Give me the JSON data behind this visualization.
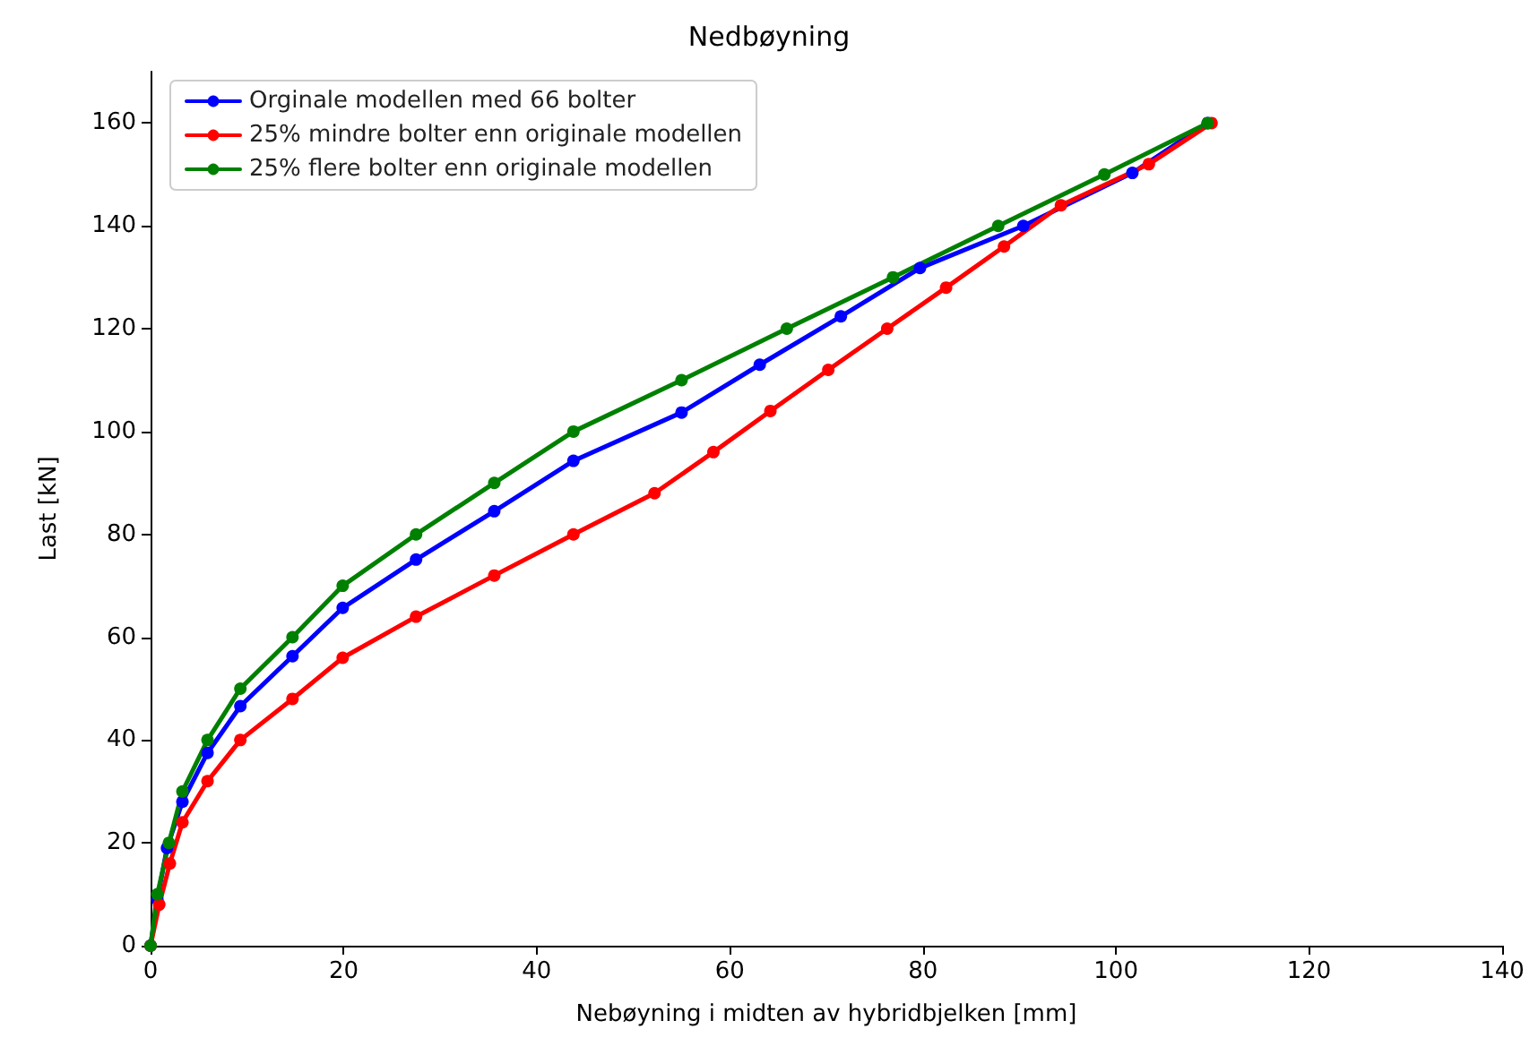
{
  "chart_data": {
    "type": "line",
    "title": "Nedbøyning",
    "xlabel": "Nebøyning i midten av hybridbjelken [mm]",
    "ylabel": "Last [kN]",
    "xlim": [
      0,
      140
    ],
    "xticks": [
      0,
      20,
      40,
      60,
      80,
      100,
      120,
      140
    ],
    "ylim": [
      0,
      170
    ],
    "yticks": [
      0,
      20,
      40,
      60,
      80,
      100,
      120,
      140,
      160
    ],
    "grid": false,
    "legend": "top left",
    "marker": "circle",
    "line_style": "solid",
    "series": [
      {
        "name": "Orginale modellen med 66 bolter",
        "color": "#0000ff",
        "x": [
          0,
          0.7,
          1.7,
          3.3,
          5.9,
          9.3,
          14.7,
          19.9,
          27.5,
          35.6,
          43.8,
          55,
          63.1,
          71.5,
          79.7,
          90.4,
          101.7,
          109.5
        ],
        "values": [
          0,
          9,
          19,
          28,
          37.5,
          46.6,
          56.3,
          65.7,
          75.1,
          84.5,
          94.3,
          103.7,
          113,
          122.4,
          131.8,
          140,
          150.3,
          160
        ]
      },
      {
        "name": "25% mindre bolter enn originale modellen",
        "color": "#ff0000",
        "x": [
          0,
          0.9,
          2,
          3.3,
          5.9,
          9.3,
          14.7,
          19.9,
          27.5,
          35.6,
          43.8,
          52.2,
          58.3,
          64.2,
          70.2,
          76.3,
          82.4,
          88.4,
          94.3,
          103.4,
          109.9
        ],
        "values": [
          0,
          8,
          16,
          24,
          32,
          40,
          48,
          56,
          64,
          72,
          80,
          88,
          96,
          104,
          112,
          120,
          128,
          136,
          144,
          152,
          160
        ]
      },
      {
        "name": "25% flere bolter enn originale modellen",
        "color": "#008000",
        "x": [
          0,
          0.7,
          1.9,
          3.3,
          5.9,
          9.3,
          14.7,
          19.9,
          27.5,
          35.6,
          43.8,
          55,
          65.9,
          76.9,
          87.8,
          98.8,
          109.5
        ],
        "values": [
          0,
          10,
          20,
          30,
          40,
          50,
          60,
          70,
          80,
          90,
          100,
          110,
          120,
          130,
          140,
          150,
          160
        ]
      }
    ]
  }
}
